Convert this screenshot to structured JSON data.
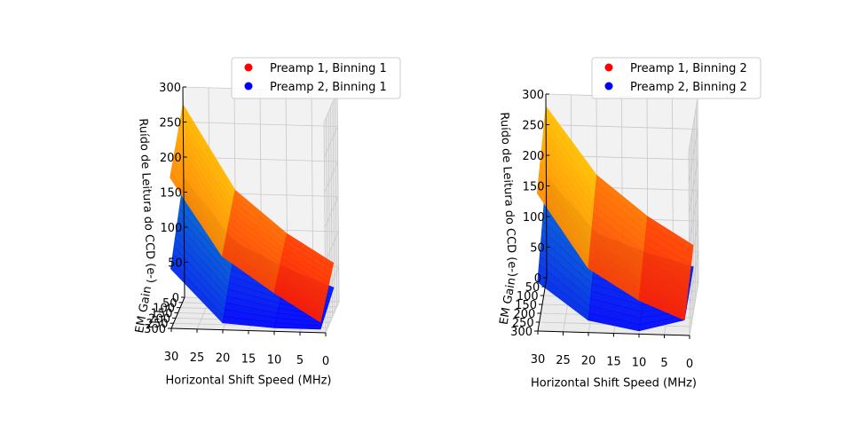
{
  "chart_data": [
    {
      "type": "surface3d",
      "xlabel": "Horizontal Shift Speed (MHz)",
      "ylabel": "EM Gain",
      "zlabel": "Ruído de Leitura do CCD (e-)",
      "x_ticks": [
        "30",
        "25",
        "20",
        "15",
        "10",
        "5",
        "0"
      ],
      "y_ticks": [
        "0",
        "50",
        "100",
        "150",
        "200",
        "250",
        "300"
      ],
      "z_ticks": [
        "50",
        "100",
        "150",
        "200",
        "250",
        "300"
      ],
      "xlim": [
        0,
        30
      ],
      "ylim": [
        0,
        300
      ],
      "zlim": [
        0,
        300
      ],
      "legend_location": "upper-right",
      "x": [
        30,
        20,
        10,
        1
      ],
      "series": [
        {
          "name": "Preamp 1, Binning 1",
          "marker_color": "#ff0000",
          "colormap": "autumn",
          "z_em0": [
            275,
            155,
            95,
            55
          ],
          "z_em300": [
            215,
            105,
            55,
            15
          ]
        },
        {
          "name": "Preamp 2, Binning 1",
          "marker_color": "#0000ff",
          "colormap": "winter",
          "z_em0": [
            170,
            80,
            45,
            20
          ],
          "z_em300": [
            85,
            10,
            5,
            5
          ]
        }
      ]
    },
    {
      "type": "surface3d",
      "xlabel": "Horizontal Shift Speed (MHz)",
      "ylabel": "EM Gain",
      "zlabel": "Ruído de Leitura do CCD (e-)",
      "x_ticks": [
        "30",
        "25",
        "20",
        "15",
        "10",
        "5",
        "0"
      ],
      "y_ticks": [
        "0",
        "50",
        "100",
        "150",
        "200",
        "250",
        "300"
      ],
      "z_ticks": [
        "50",
        "100",
        "150",
        "200",
        "250",
        "300"
      ],
      "xlim": [
        0,
        30
      ],
      "ylim": [
        0,
        300
      ],
      "zlim": [
        0,
        300
      ],
      "legend_location": "upper-right",
      "x": [
        30,
        20,
        10,
        1
      ],
      "series": [
        {
          "name": "Preamp 1, Binning 2",
          "marker_color": "#ff0000",
          "colormap": "autumn",
          "z_em0": [
            280,
            170,
            105,
            60
          ],
          "z_em300": [
            225,
            105,
            55,
            25
          ]
        },
        {
          "name": "Preamp 2, Binning 2",
          "marker_color": "#0000ff",
          "colormap": "winter",
          "z_em0": [
            165,
            75,
            45,
            25
          ],
          "z_em300": [
            80,
            20,
            5,
            25
          ]
        }
      ]
    }
  ]
}
